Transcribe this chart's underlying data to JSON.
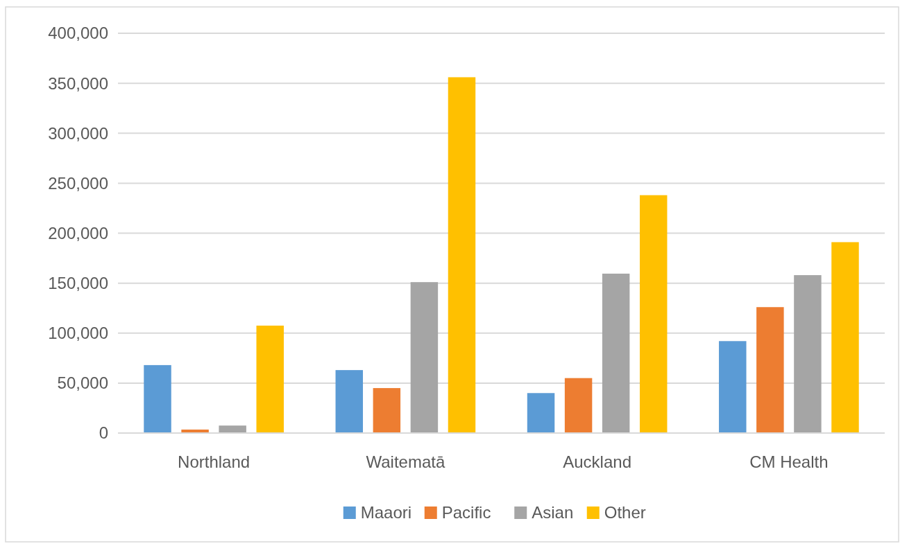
{
  "chart_data": {
    "type": "bar",
    "categories": [
      "Northland",
      "Waitematā",
      "Auckland",
      "CM Health"
    ],
    "series": [
      {
        "name": "Maaori",
        "color": "#5b9bd5",
        "values": [
          68000,
          63000,
          40000,
          92000
        ]
      },
      {
        "name": "Pacific",
        "color": "#ed7d31",
        "values": [
          3500,
          45000,
          55000,
          126000
        ]
      },
      {
        "name": "Asian",
        "color": "#a5a5a5",
        "values": [
          7500,
          151000,
          159500,
          158000
        ]
      },
      {
        "name": "Other",
        "color": "#ffc000",
        "values": [
          107500,
          356000,
          238000,
          191000
        ]
      }
    ],
    "ylim": [
      0,
      400000
    ],
    "yticks": [
      {
        "value": 0,
        "label": "0"
      },
      {
        "value": 50000,
        "label": "50,000"
      },
      {
        "value": 100000,
        "label": "100,000"
      },
      {
        "value": 150000,
        "label": "150,000"
      },
      {
        "value": 200000,
        "label": "200,000"
      },
      {
        "value": 250000,
        "label": "250,000"
      },
      {
        "value": 300000,
        "label": "300,000"
      },
      {
        "value": 350000,
        "label": "350,000"
      },
      {
        "value": 400000,
        "label": "400,000"
      }
    ],
    "grid": "y",
    "legend": "bottom"
  }
}
